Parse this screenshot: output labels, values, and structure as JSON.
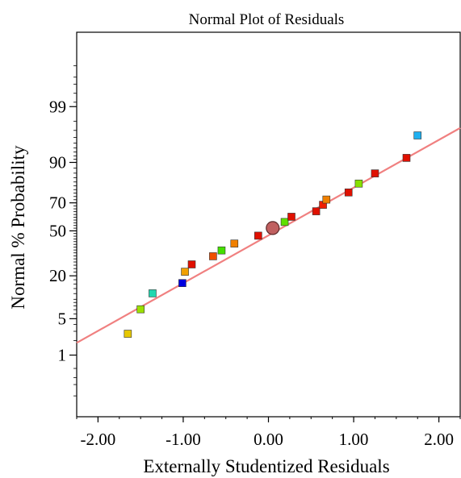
{
  "chart_data": {
    "type": "scatter",
    "title": "Normal Plot of Residuals",
    "xlabel": "Externally Studentized Residuals",
    "ylabel": "Normal % Probability",
    "xlim": [
      -2.25,
      2.25
    ],
    "x_ticks": [
      -2.0,
      -1.0,
      0.0,
      1.0,
      2.0
    ],
    "x_tick_labels": [
      "-2.00",
      "-1.00",
      "0.00",
      "1.00",
      "2.00"
    ],
    "y_scale": "normal-probability",
    "y_ticks": [
      1,
      5,
      20,
      50,
      70,
      90,
      99
    ],
    "y_tick_labels": [
      "1",
      "5",
      "20",
      "50",
      "70",
      "90",
      "99"
    ],
    "grid": false,
    "reference_line": {
      "color": "#f08080",
      "points": [
        [
          -2.25,
          1.8
        ],
        [
          2.25,
          97.3
        ]
      ]
    },
    "points": [
      {
        "x": -1.65,
        "y": 2.7,
        "color": "#e6c800"
      },
      {
        "x": -1.5,
        "y": 7.1,
        "color": "#9be000"
      },
      {
        "x": -1.36,
        "y": 12.1,
        "color": "#20d8b0"
      },
      {
        "x": -1.01,
        "y": 16.4,
        "color": "#0000e0"
      },
      {
        "x": -0.98,
        "y": 22.2,
        "color": "#f0a000"
      },
      {
        "x": -0.9,
        "y": 26.5,
        "color": "#e01000"
      },
      {
        "x": -0.65,
        "y": 31.7,
        "color": "#f05000"
      },
      {
        "x": -0.55,
        "y": 35.7,
        "color": "#44e000"
      },
      {
        "x": -0.4,
        "y": 40.6,
        "color": "#f08000"
      },
      {
        "x": -0.12,
        "y": 46.4,
        "color": "#e01000"
      },
      {
        "x": 0.19,
        "y": 56.6,
        "color": "#60e000"
      },
      {
        "x": 0.27,
        "y": 60.4,
        "color": "#e01000"
      },
      {
        "x": 0.56,
        "y": 64.3,
        "color": "#e01000"
      },
      {
        "x": 0.64,
        "y": 68.7,
        "color": "#f02000"
      },
      {
        "x": 0.68,
        "y": 72.1,
        "color": "#f08000"
      },
      {
        "x": 0.94,
        "y": 76.4,
        "color": "#e01000"
      },
      {
        "x": 1.06,
        "y": 81.2,
        "color": "#88e000"
      },
      {
        "x": 1.25,
        "y": 85.9,
        "color": "#e01000"
      },
      {
        "x": 1.62,
        "y": 91.4,
        "color": "#e01000"
      },
      {
        "x": 1.75,
        "y": 96.3,
        "color": "#20b0f0"
      }
    ],
    "highlight_point": {
      "x": 0.05,
      "y": 52.1,
      "color": "#c06060",
      "shape": "circle"
    }
  }
}
